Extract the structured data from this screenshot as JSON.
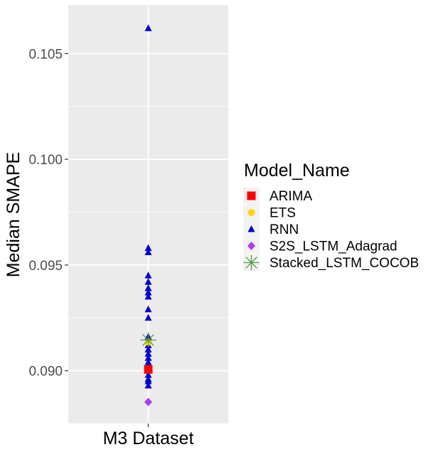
{
  "chart_data": {
    "type": "scatter",
    "xlabel": "",
    "ylabel": "Median SMAPE",
    "categories": [
      "M3 Dataset"
    ],
    "ylim": [
      0.0875,
      0.1073
    ],
    "yticks": [
      0.09,
      0.095,
      0.1,
      0.105
    ],
    "ytick_labels": [
      "0.090",
      "0.095",
      "0.100",
      "0.105"
    ],
    "grid": true,
    "legend": {
      "title": "Model_Name",
      "position": "right"
    },
    "series": [
      {
        "name": "ARIMA",
        "color": "#ff0000",
        "marker": "square",
        "points": [
          {
            "x": "M3 Dataset",
            "y": 0.09006
          }
        ]
      },
      {
        "name": "ETS",
        "color": "#ffd700",
        "marker": "circle",
        "points": [
          {
            "x": "M3 Dataset",
            "y": 0.09135
          }
        ]
      },
      {
        "name": "RNN",
        "color": "#0000cd",
        "marker": "triangle",
        "points": [
          {
            "x": "M3 Dataset",
            "y": 0.1062
          },
          {
            "x": "M3 Dataset",
            "y": 0.0958
          },
          {
            "x": "M3 Dataset",
            "y": 0.0956
          },
          {
            "x": "M3 Dataset",
            "y": 0.0945
          },
          {
            "x": "M3 Dataset",
            "y": 0.0942
          },
          {
            "x": "M3 Dataset",
            "y": 0.0939
          },
          {
            "x": "M3 Dataset",
            "y": 0.0937
          },
          {
            "x": "M3 Dataset",
            "y": 0.0935
          },
          {
            "x": "M3 Dataset",
            "y": 0.0929
          },
          {
            "x": "M3 Dataset",
            "y": 0.0925
          },
          {
            "x": "M3 Dataset",
            "y": 0.0916
          },
          {
            "x": "M3 Dataset",
            "y": 0.0912
          },
          {
            "x": "M3 Dataset",
            "y": 0.091
          },
          {
            "x": "M3 Dataset",
            "y": 0.0908
          },
          {
            "x": "M3 Dataset",
            "y": 0.0906
          },
          {
            "x": "M3 Dataset",
            "y": 0.0904
          },
          {
            "x": "M3 Dataset",
            "y": 0.0902
          },
          {
            "x": "M3 Dataset",
            "y": 0.0898
          },
          {
            "x": "M3 Dataset",
            "y": 0.0896
          },
          {
            "x": "M3 Dataset",
            "y": 0.0895
          },
          {
            "x": "M3 Dataset",
            "y": 0.0893
          }
        ]
      },
      {
        "name": "S2S_LSTM_Adagrad",
        "color": "#b23cf0",
        "marker": "diamond",
        "points": [
          {
            "x": "M3 Dataset",
            "y": 0.08852
          }
        ]
      },
      {
        "name": "Stacked_LSTM_COCOB",
        "color": "#4d9a45",
        "marker": "asterisk",
        "points": [
          {
            "x": "M3 Dataset",
            "y": 0.09145
          }
        ]
      }
    ]
  }
}
